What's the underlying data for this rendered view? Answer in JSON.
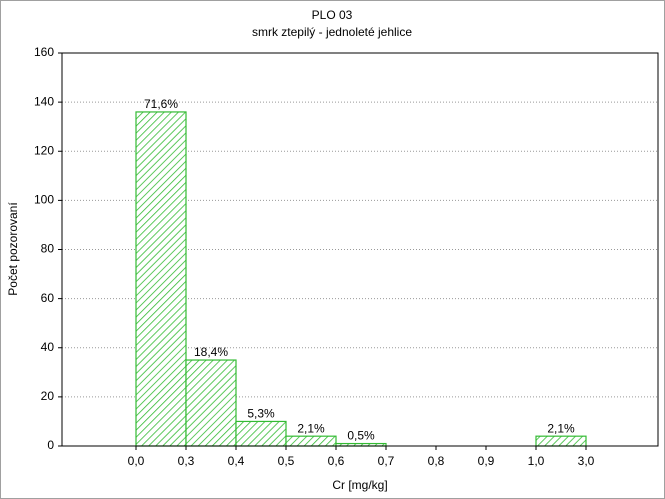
{
  "chart_data": {
    "type": "histogram",
    "title": "PLO 03",
    "subtitle": "smrk ztepilý - jednoleté jehlice",
    "x_label": "Cr [mg/kg]",
    "y_label": "Počet pozorovaní",
    "bins": [
      {
        "value": 0.0,
        "label": "0,0"
      },
      {
        "value": 0.3,
        "label": "0,3"
      },
      {
        "value": 0.4,
        "label": "0,4"
      },
      {
        "value": 0.5,
        "label": "0,5"
      },
      {
        "value": 0.6,
        "label": "0,6"
      },
      {
        "value": 0.7,
        "label": "0,7"
      },
      {
        "value": 0.8,
        "label": "0,8"
      },
      {
        "value": 0.9,
        "label": "0,9"
      },
      {
        "value": 1.0,
        "label": "1,0"
      },
      {
        "value": 3.0,
        "label": "3,0"
      }
    ],
    "values": [
      136,
      35,
      10,
      4,
      1,
      0,
      0,
      0,
      4
    ],
    "percent_labels": [
      "71,6%",
      "18,4%",
      "5,3%",
      "2,1%",
      "0,5%",
      null,
      null,
      null,
      "2,1%"
    ],
    "color": "#33bb33",
    "ylim": [
      0,
      160
    ],
    "yticks": [
      0,
      20,
      40,
      60,
      80,
      100,
      120,
      140,
      160
    ],
    "grid": true
  }
}
